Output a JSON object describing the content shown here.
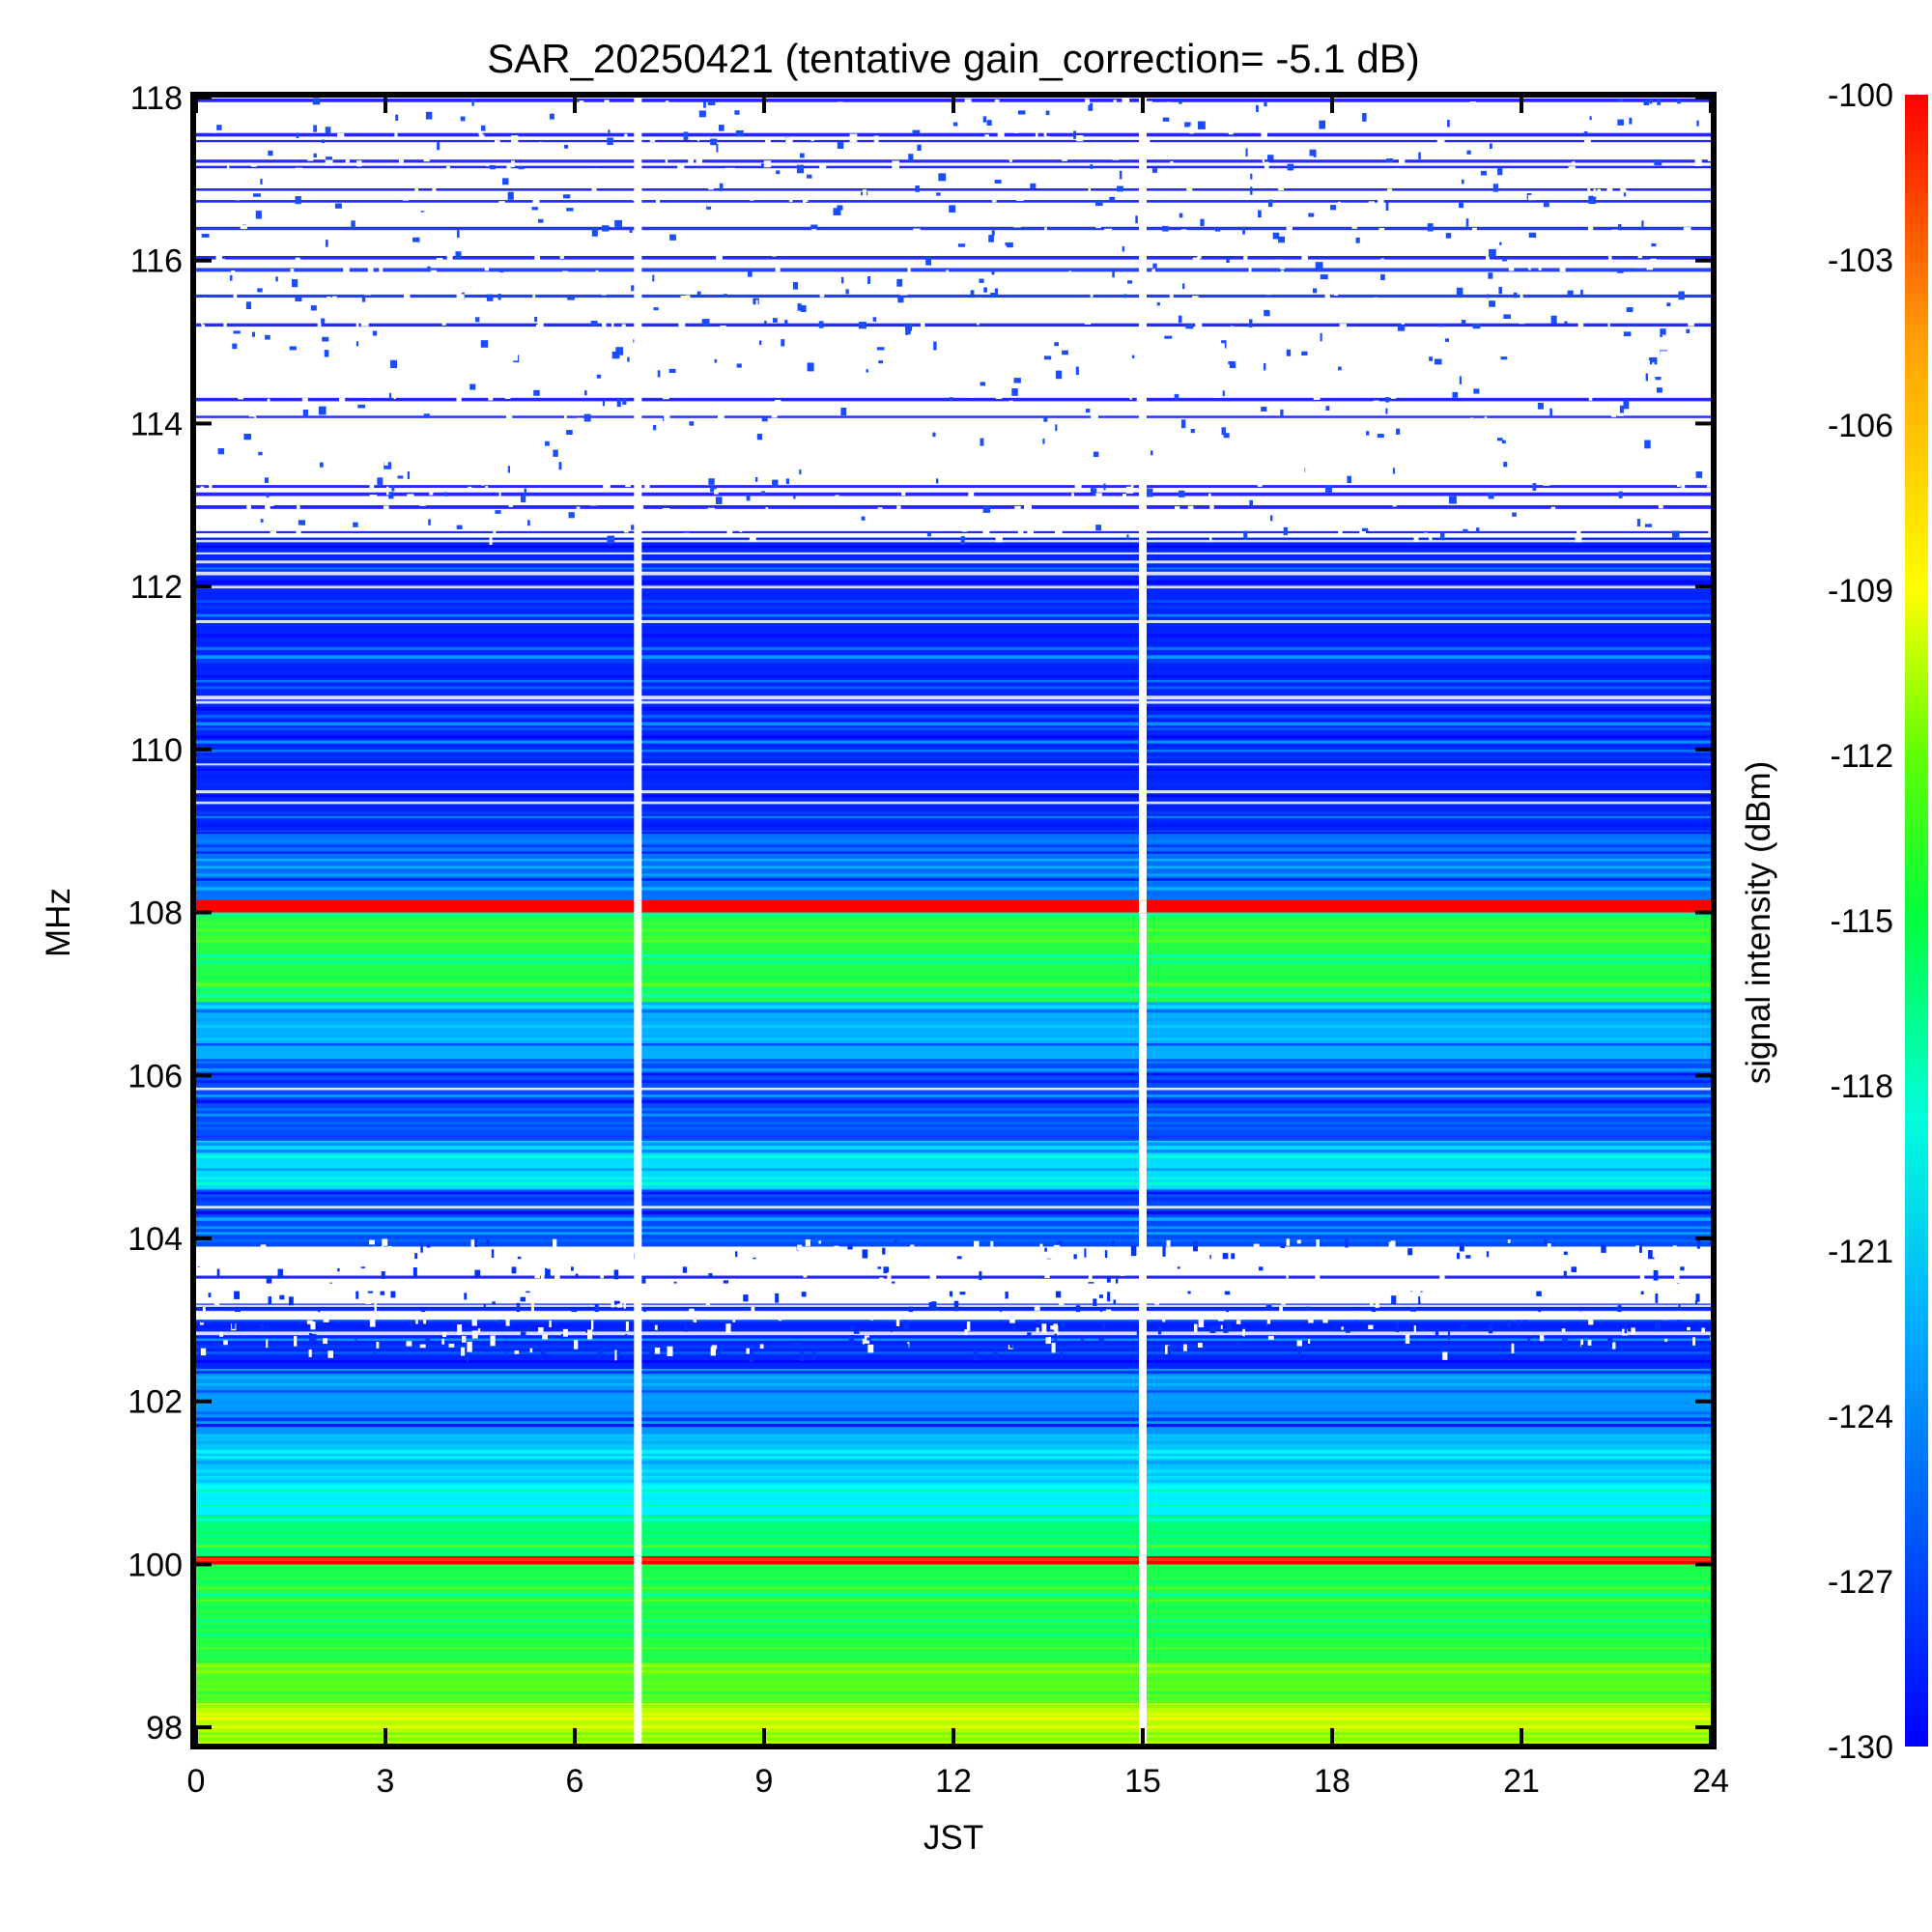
{
  "chart_data": {
    "type": "heatmap",
    "title": "SAR_20250421 (tentative gain_correction= -5.1 dB)",
    "xlabel": "JST",
    "ylabel": "MHz",
    "colorbar_label": "signal intensity (dBm)",
    "xlim": [
      0,
      24
    ],
    "ylim": [
      97.8,
      118
    ],
    "x_ticks": [
      "0",
      "3",
      "6",
      "9",
      "12",
      "15",
      "18",
      "21",
      "24"
    ],
    "x_tick_values": [
      0,
      3,
      6,
      9,
      12,
      15,
      18,
      21,
      24
    ],
    "y_ticks": [
      "98",
      "100",
      "102",
      "104",
      "106",
      "108",
      "110",
      "112",
      "114",
      "116",
      "118"
    ],
    "y_tick_values": [
      98,
      100,
      102,
      104,
      106,
      108,
      110,
      112,
      114,
      116,
      118
    ],
    "colorbar_ticks": [
      "-100",
      "-103",
      "-106",
      "-109",
      "-112",
      "-115",
      "-118",
      "-121",
      "-124",
      "-127",
      "-130"
    ],
    "colorbar_tick_values": [
      -100,
      -103,
      -106,
      -109,
      -112,
      -115,
      -118,
      -121,
      -124,
      -127,
      -130
    ],
    "clim": [
      -130,
      -100
    ],
    "colormap": "rainbow (blue = -130 dBm, red = -100 dBm)",
    "colormap_stops": [
      "#0000ff",
      "#00a0ff",
      "#00ffff",
      "#00ff60",
      "#80ff00",
      "#ffff00",
      "#ffa000",
      "#ff0000"
    ],
    "data_gaps_jst": [
      7.0,
      15.0
    ],
    "bands": [
      {
        "f_min": 97.8,
        "f_max": 98.3,
        "level_dbm": -111
      },
      {
        "f_min": 98.3,
        "f_max": 98.8,
        "level_dbm": -114
      },
      {
        "f_min": 98.8,
        "f_max": 100.0,
        "level_dbm": -116
      },
      {
        "f_min": 100.0,
        "f_max": 100.1,
        "level_dbm": -100
      },
      {
        "f_min": 100.1,
        "f_max": 100.6,
        "level_dbm": -118
      },
      {
        "f_min": 100.6,
        "f_max": 101.0,
        "level_dbm": -122
      },
      {
        "f_min": 101.0,
        "f_max": 101.6,
        "level_dbm": -124
      },
      {
        "f_min": 101.6,
        "f_max": 102.4,
        "level_dbm": -126
      },
      {
        "f_min": 102.4,
        "f_max": 103.2,
        "level_dbm": -129
      },
      {
        "f_min": 103.2,
        "f_max": 103.9,
        "level_dbm": -132
      },
      {
        "f_min": 103.9,
        "f_max": 104.6,
        "level_dbm": -128
      },
      {
        "f_min": 104.6,
        "f_max": 105.2,
        "level_dbm": -123
      },
      {
        "f_min": 105.2,
        "f_max": 106.2,
        "level_dbm": -128
      },
      {
        "f_min": 106.2,
        "f_max": 106.9,
        "level_dbm": -125
      },
      {
        "f_min": 106.9,
        "f_max": 108.0,
        "level_dbm": -116
      },
      {
        "f_min": 108.0,
        "f_max": 108.15,
        "level_dbm": -100
      },
      {
        "f_min": 108.15,
        "f_max": 109.0,
        "level_dbm": -127
      },
      {
        "f_min": 109.0,
        "f_max": 112.6,
        "level_dbm": -129
      },
      {
        "f_min": 112.6,
        "f_max": 118.0,
        "level_dbm": -133
      }
    ]
  }
}
